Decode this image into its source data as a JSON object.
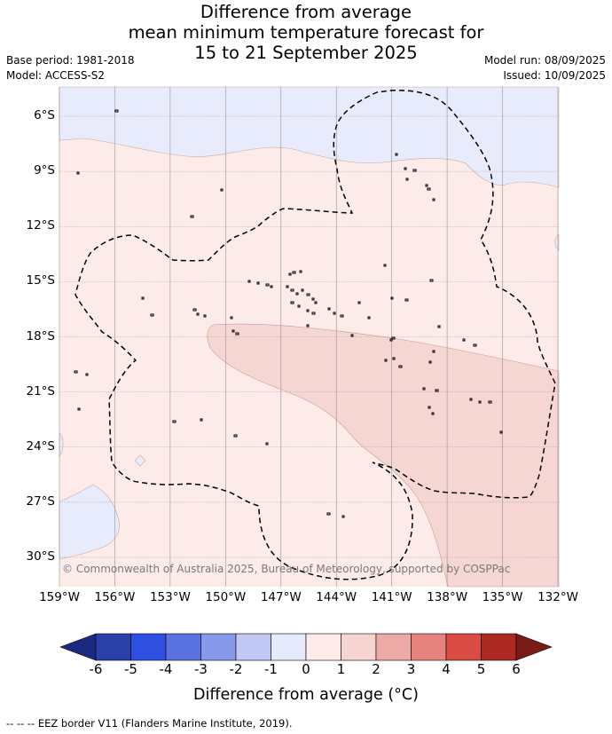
{
  "title": {
    "line1": "Difference from average",
    "line2": "mean minimum temperature forecast for",
    "line3": "15 to 21 September 2025"
  },
  "meta": {
    "base_period": "Base period: 1981-2018",
    "model": "Model: ACCESS-S2",
    "model_run": "Model run: 08/09/2025",
    "issued": "Issued: 10/09/2025"
  },
  "map": {
    "lat_labels": [
      "6°S",
      "9°S",
      "12°S",
      "15°S",
      "18°S",
      "21°S",
      "24°S",
      "27°S",
      "30°S"
    ],
    "lon_labels": [
      "159°W",
      "156°W",
      "153°W",
      "150°W",
      "147°W",
      "144°W",
      "141°W",
      "138°W",
      "135°W",
      "132°W"
    ],
    "copyright": "© Commonwealth of Australia 2025, Bureau of Meteorology, supported by COSPPac"
  },
  "colorbar": {
    "tick_labels": [
      "-6",
      "-5",
      "-4",
      "-3",
      "-2",
      "-1",
      "0",
      "1",
      "2",
      "3",
      "4",
      "5",
      "6"
    ],
    "colors": [
      "#2a3fa8",
      "#2f4fe0",
      "#5a72e0",
      "#8898ea",
      "#c0c8f3",
      "#e6eafb",
      "#fcebe8",
      "#f5d4d1",
      "#eda9a6",
      "#e6837e",
      "#d94b43",
      "#ab2a22"
    ],
    "under_color": "#1b2a80",
    "over_color": "#7a1b16",
    "title": "Difference from average (°C)"
  },
  "footer": "-- -- -- EEZ border V11 (Flanders Marine Institute, 2019)."
}
